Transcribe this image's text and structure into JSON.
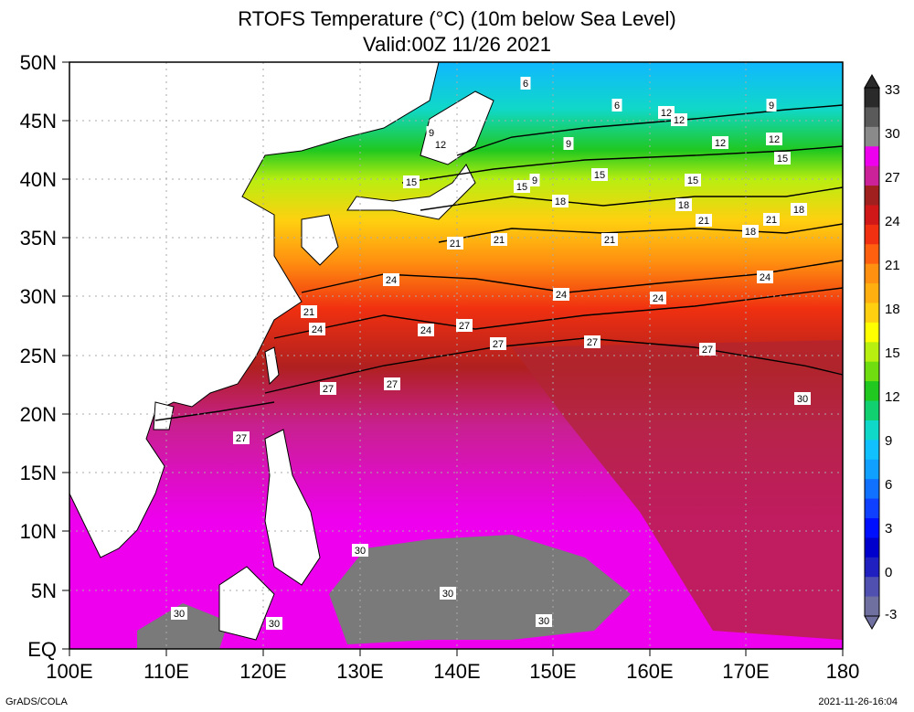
{
  "title_line1": "RTOFS Temperature (°C) (10m below Sea Level)",
  "title_line2": "Valid:00Z 11/26 2021",
  "credit": "GrADS/COLA",
  "timestamp": "2021-11-26-16:04",
  "y_ticks": [
    "50N",
    "45N",
    "40N",
    "35N",
    "30N",
    "25N",
    "20N",
    "15N",
    "10N",
    "5N",
    "EQ"
  ],
  "x_ticks": [
    "100E",
    "110E",
    "120E",
    "130E",
    "140E",
    "150E",
    "160E",
    "170E",
    "180"
  ],
  "colorbar": {
    "labels": [
      "33",
      "30",
      "27",
      "24",
      "21",
      "18",
      "15",
      "12",
      "9",
      "6",
      "3",
      "0",
      "-3"
    ],
    "colors": [
      "#2a2a2a",
      "#5a5a5a",
      "#8a8a8a",
      "#ee00ee",
      "#cc2299",
      "#a02020",
      "#d01818",
      "#f03010",
      "#ff6010",
      "#ff9010",
      "#ffb010",
      "#ffd010",
      "#ffff00",
      "#b8ee10",
      "#70dd10",
      "#20c820",
      "#10d070",
      "#10d8c8",
      "#10c0ff",
      "#10a0ff",
      "#1070ff",
      "#1040ff",
      "#0010ff",
      "#0000cc",
      "#2020c0",
      "#5050b0",
      "#7070a0"
    ]
  },
  "contour_labels": [
    {
      "text": "6"
    },
    {
      "text": "6"
    },
    {
      "text": "9"
    },
    {
      "text": "12"
    },
    {
      "text": "9"
    },
    {
      "text": "9"
    },
    {
      "text": "12"
    },
    {
      "text": "12"
    },
    {
      "text": "9"
    },
    {
      "text": "12"
    },
    {
      "text": "12"
    },
    {
      "text": "15"
    },
    {
      "text": "15"
    },
    {
      "text": "15"
    },
    {
      "text": "15"
    },
    {
      "text": "15"
    },
    {
      "text": "18"
    },
    {
      "text": "18"
    },
    {
      "text": "21"
    },
    {
      "text": "18"
    },
    {
      "text": "21"
    },
    {
      "text": "18"
    },
    {
      "text": "21"
    },
    {
      "text": "21"
    },
    {
      "text": "21"
    },
    {
      "text": "24"
    },
    {
      "text": "24"
    },
    {
      "text": "24"
    },
    {
      "text": "24"
    },
    {
      "text": "21"
    },
    {
      "text": "24"
    },
    {
      "text": "24"
    },
    {
      "text": "27"
    },
    {
      "text": "27"
    },
    {
      "text": "27"
    },
    {
      "text": "27"
    },
    {
      "text": "27"
    },
    {
      "text": "27"
    },
    {
      "text": "27"
    },
    {
      "text": "30"
    },
    {
      "text": "30"
    },
    {
      "text": "30"
    },
    {
      "text": "30"
    },
    {
      "text": "30"
    },
    {
      "text": "30"
    }
  ]
}
